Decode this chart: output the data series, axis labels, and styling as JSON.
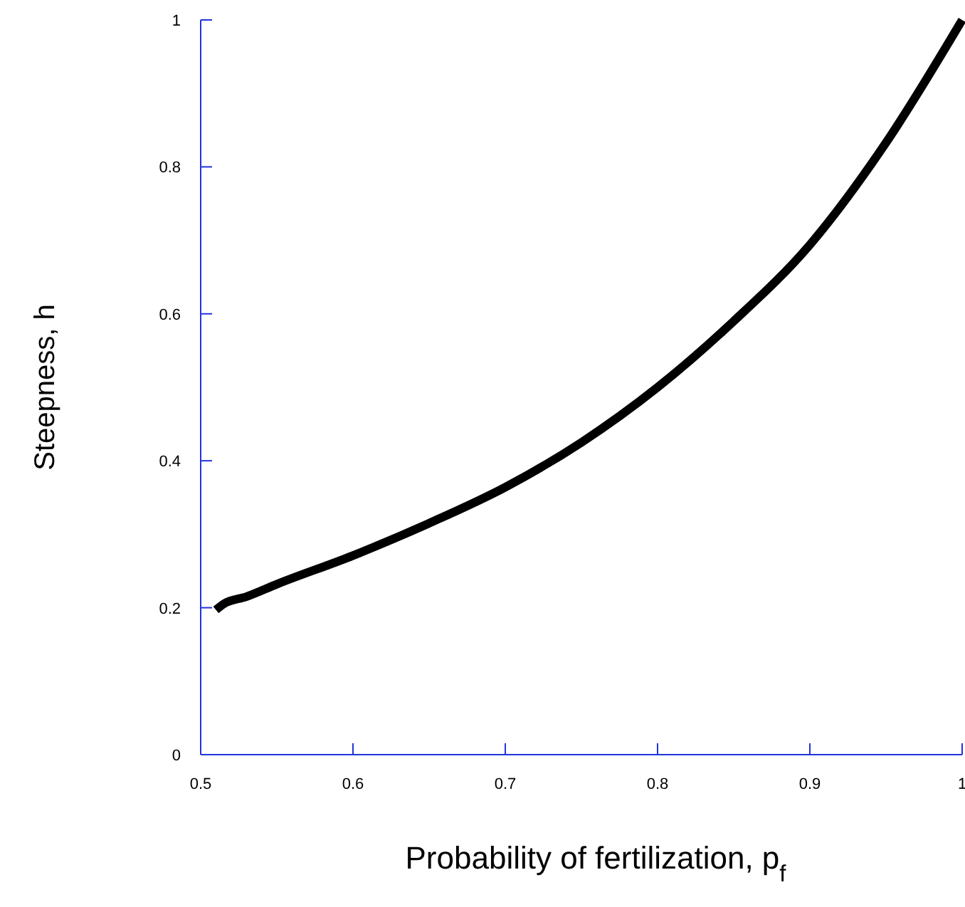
{
  "chart_data": {
    "type": "line",
    "xlabel": "Probability of fertilization, p$_{f}$",
    "ylabel": "Steepness, h",
    "xlim": [
      0.5,
      1
    ],
    "ylim": [
      0,
      1
    ],
    "xticks": [
      0.5,
      0.6,
      0.7,
      0.8,
      0.9,
      1
    ],
    "yticks": [
      0,
      0.2,
      0.4,
      0.6,
      0.8,
      1
    ],
    "grid": false,
    "marker": "none",
    "line_style": "solid",
    "x": [
      0.51,
      0.515,
      0.53,
      0.55,
      0.6,
      0.65,
      0.7,
      0.75,
      0.8,
      0.85,
      0.9,
      0.95,
      1
    ],
    "series": [
      {
        "color": "#000000",
        "values": [
          0.197,
          0.205,
          0.215,
          0.232,
          0.271,
          0.315,
          0.364,
          0.425,
          0.5,
          0.59,
          0.694,
          0.833,
          1
        ]
      }
    ]
  }
}
